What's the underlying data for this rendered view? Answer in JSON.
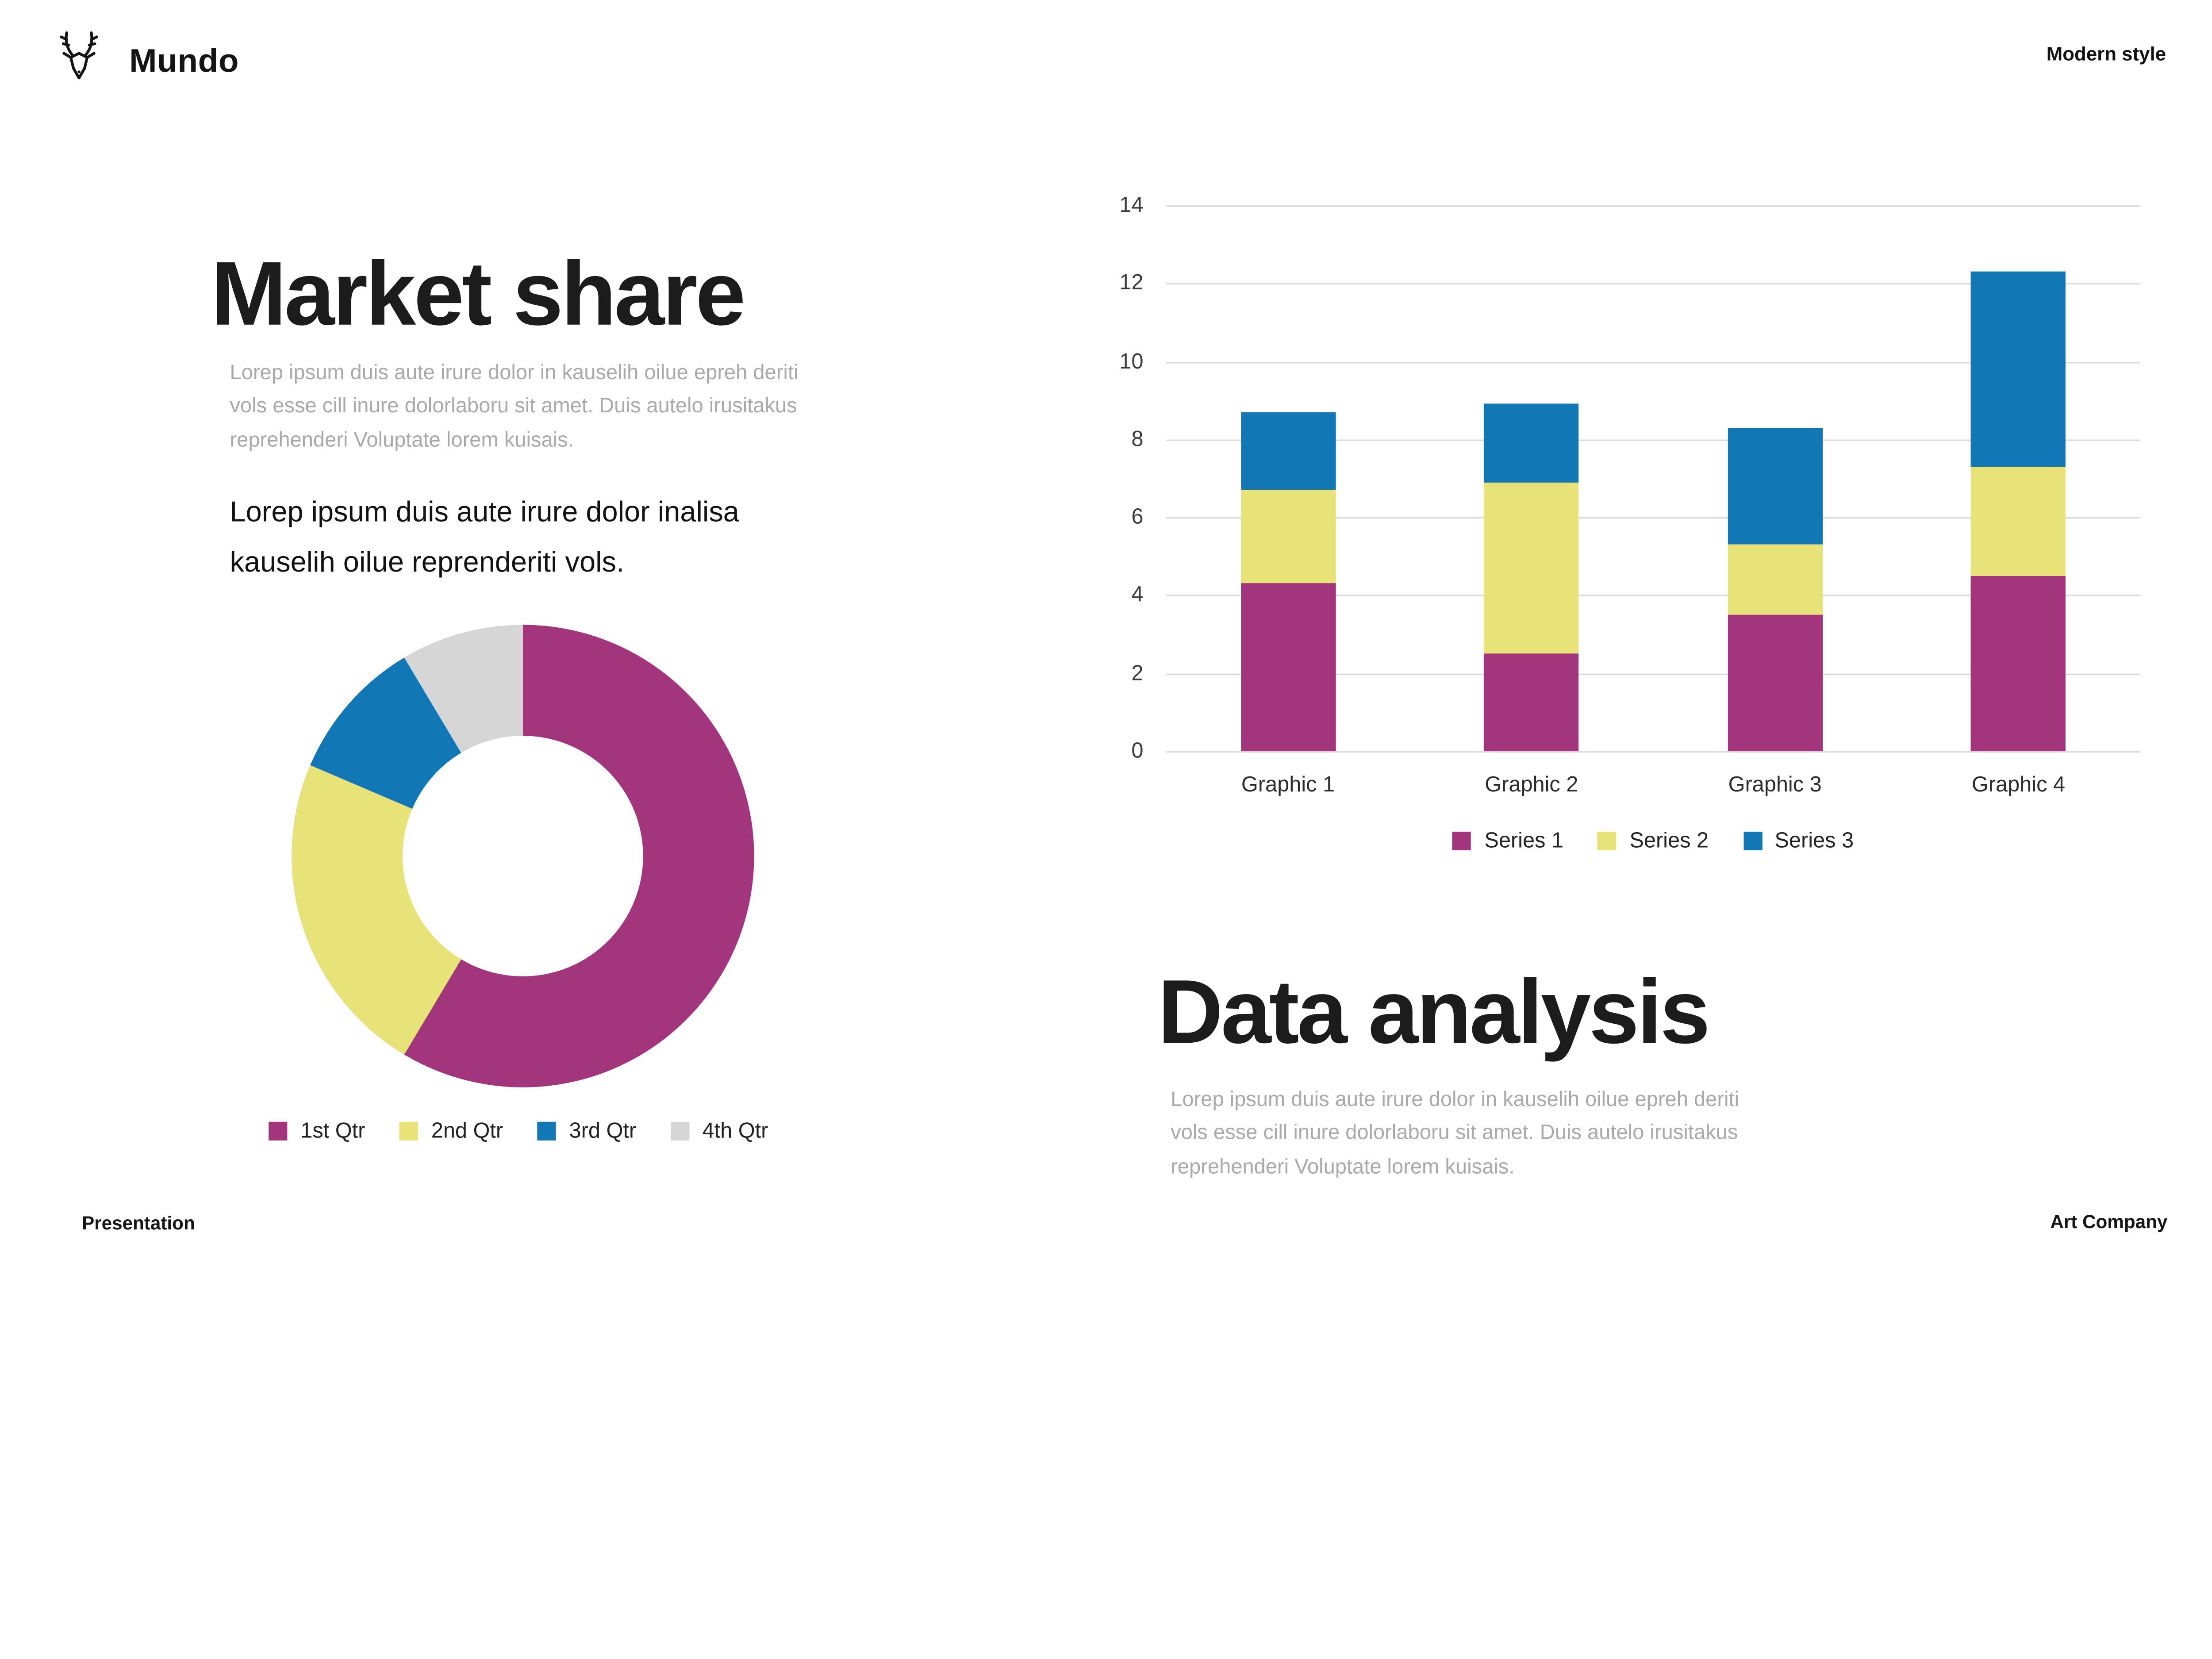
{
  "header": {
    "brand": "Mundo",
    "tagline": "Modern style"
  },
  "left_section": {
    "title": "Market share",
    "paragraph": "Lorep  ipsum duis aute irure dolor in kauselih oilue epreh deriti vols esse cill inure dolorlaboru sit amet. Duis autelo irusitakus reprehenderi Voluptate lorem kuisais.",
    "subtitle": "Lorep  ipsum duis aute irure dolor inalisa kauselih oilue reprenderiti vols."
  },
  "right_section": {
    "title": "Data analysis",
    "paragraph": "Lorep  ipsum duis aute irure dolor in kauselih oilue epreh deriti vols esse cill inure dolorlaboru sit amet. Duis autelo irusitakus reprehenderi Voluptate lorem kuisais."
  },
  "footer": {
    "left": "Presentation",
    "right": "Art Company"
  },
  "chart_data": [
    {
      "type": "pie",
      "donut": true,
      "title": "",
      "labels": [
        "1st Qtr",
        "2nd Qtr",
        "3rd Qtr",
        "4th Qtr"
      ],
      "values": [
        8.2,
        3.2,
        1.4,
        1.2
      ],
      "colors": [
        "#A3357C",
        "#E7E379",
        "#1278B5",
        "#D6D6D6"
      ],
      "legend_position": "bottom",
      "start_angle_deg": 0,
      "inner_radius_ratio": 0.52
    },
    {
      "type": "bar",
      "stacked": true,
      "title": "",
      "categories": [
        "Graphic 1",
        "Graphic 2",
        "Graphic 3",
        "Graphic 4"
      ],
      "series": [
        {
          "name": "Series 1",
          "values": [
            4.3,
            2.5,
            3.5,
            4.5
          ],
          "color": "#A3357C"
        },
        {
          "name": "Series 2",
          "values": [
            2.4,
            4.4,
            1.8,
            2.8
          ],
          "color": "#E7E379"
        },
        {
          "name": "Series 3",
          "values": [
            2.0,
            2.0,
            3.0,
            5.0
          ],
          "color": "#1278B5"
        }
      ],
      "totals": [
        8.7,
        8.9,
        8.3,
        12.3
      ],
      "xlabel": "",
      "ylabel": "",
      "ylim": [
        0,
        14
      ],
      "yticks": [
        0,
        2,
        4,
        6,
        8,
        10,
        12,
        14
      ],
      "grid": true,
      "gridline_color": "#d9d9d9",
      "legend_position": "bottom"
    }
  ]
}
